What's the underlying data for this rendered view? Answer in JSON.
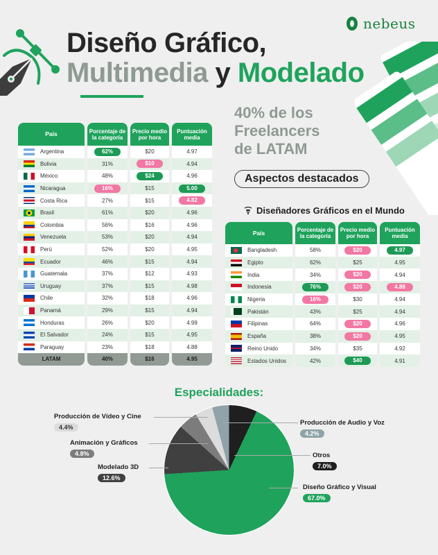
{
  "header": {
    "title_line1": "Diseño Gráfico,",
    "title_line2_part1": "Multimedia",
    "title_line2_part2": " y ",
    "title_line2_part3": "Modelado",
    "logo_text": "nebeus"
  },
  "highlights": {
    "stat_line1": "40% de los",
    "stat_line2": "Freelancers",
    "stat_line3": "de LATAM",
    "aspects_label": "Aspectos destacados",
    "world_title": "Diseñadores Gráficos en el Mundo"
  },
  "colors": {
    "brand_green": "#1fa35c",
    "pink": "#f277a2",
    "gray_text": "#8e9a92"
  },
  "latam_table": {
    "headers": [
      "País",
      "Porcentaje de la categoría",
      "Precio medio por hora",
      "Puntuación media"
    ],
    "rows": [
      {
        "country": "Argentina",
        "pct": "62%",
        "price": "$20",
        "score": "4.97",
        "pct_hl": "green"
      },
      {
        "country": "Bolivia",
        "pct": "31%",
        "price": "$10",
        "score": "4.94",
        "price_hl": "pink"
      },
      {
        "country": "México",
        "pct": "48%",
        "price": "$24",
        "score": "4.96",
        "price_hl": "green"
      },
      {
        "country": "Nicaragua",
        "pct": "16%",
        "price": "$15",
        "score": "5.00",
        "pct_hl": "pink",
        "score_hl": "green"
      },
      {
        "country": "Costa Rica",
        "pct": "27%",
        "price": "$15",
        "score": "4.82",
        "score_hl": "pink"
      },
      {
        "country": "Brasil",
        "pct": "61%",
        "price": "$20",
        "score": "4.96"
      },
      {
        "country": "Colombia",
        "pct": "56%",
        "price": "$16",
        "score": "4.96"
      },
      {
        "country": "Venezuela",
        "pct": "53%",
        "price": "$20",
        "score": "4.94"
      },
      {
        "country": "Perú",
        "pct": "52%",
        "price": "$20",
        "score": "4.95"
      },
      {
        "country": "Ecuador",
        "pct": "46%",
        "price": "$15",
        "score": "4.94"
      },
      {
        "country": "Guatemala",
        "pct": "37%",
        "price": "$12",
        "score": "4.93"
      },
      {
        "country": "Uruguay",
        "pct": "37%",
        "price": "$15",
        "score": "4.98"
      },
      {
        "country": "Chile",
        "pct": "32%",
        "price": "$18",
        "score": "4.96"
      },
      {
        "country": "Panamá",
        "pct": "29%",
        "price": "$15",
        "score": "4.94"
      },
      {
        "country": "Honduras",
        "pct": "26%",
        "price": "$20",
        "score": "4.99"
      },
      {
        "country": "El Salvador",
        "pct": "24%",
        "price": "$15",
        "score": "4.95"
      },
      {
        "country": "Paraguay",
        "pct": "23%",
        "price": "$18",
        "score": "4.88"
      }
    ],
    "total": {
      "country": "LATAM",
      "pct": "40%",
      "price": "$16",
      "score": "4.95"
    }
  },
  "world_table": {
    "headers": [
      "País",
      "Porcentaje de la categoría",
      "Precio medio por hora",
      "Puntuación media"
    ],
    "rows": [
      {
        "country": "Bangladesh",
        "pct": "58%",
        "price": "$20",
        "score": "4.97",
        "price_hl": "pink",
        "score_hl": "green"
      },
      {
        "country": "Egipto",
        "pct": "62%",
        "price": "$25",
        "score": "4.95"
      },
      {
        "country": "India",
        "pct": "34%",
        "price": "$20",
        "score": "4.94",
        "price_hl": "pink"
      },
      {
        "country": "Indonesia",
        "pct": "76%",
        "price": "$20",
        "score": "4.88",
        "pct_hl": "green",
        "price_hl": "pink",
        "score_hl": "pink"
      },
      {
        "country": "Nigeria",
        "pct": "16%",
        "price": "$30",
        "score": "4.94",
        "pct_hl": "pink"
      },
      {
        "country": "Pakistán",
        "pct": "43%",
        "price": "$25",
        "score": "4.94"
      },
      {
        "country": "Filipinas",
        "pct": "64%",
        "price": "$20",
        "score": "4.96",
        "price_hl": "pink"
      },
      {
        "country": "España",
        "pct": "38%",
        "price": "$20",
        "score": "4.95",
        "price_hl": "pink"
      },
      {
        "country": "Reino Unido",
        "pct": "34%",
        "price": "$35",
        "score": "4.92"
      },
      {
        "country": "Estados Unidos",
        "pct": "42%",
        "price": "$40",
        "score": "4.91",
        "price_hl": "green"
      }
    ]
  },
  "chart_data": {
    "type": "pie",
    "title": "Especialidades:",
    "start_angle": "12 o'clock, clockwise",
    "slices": [
      {
        "label": "Otros",
        "value": 7.0,
        "pct_label": "7.0%",
        "color": "#1f1f1f",
        "text_color": "#ffffff"
      },
      {
        "label": "Diseño Gráfico y Visual",
        "value": 67.0,
        "pct_label": "67.0%",
        "color": "#1fa35c",
        "text_color": "#ffffff"
      },
      {
        "label": "Modelado 3D",
        "value": 12.6,
        "pct_label": "12.6%",
        "color": "#404040",
        "text_color": "#ffffff"
      },
      {
        "label": "Animación y Gráficos",
        "value": 4.8,
        "pct_label": "4.8%",
        "color": "#7c7c7c",
        "text_color": "#ffffff"
      },
      {
        "label": "Producción de Vídeo y Cine",
        "value": 4.4,
        "pct_label": "4.4%",
        "color": "#dcdcdc",
        "text_color": "#333333"
      },
      {
        "label": "Producción de Audio y Voz",
        "value": 4.2,
        "pct_label": "4.2%",
        "color": "#8fa3a8",
        "text_color": "#ffffff"
      }
    ]
  }
}
